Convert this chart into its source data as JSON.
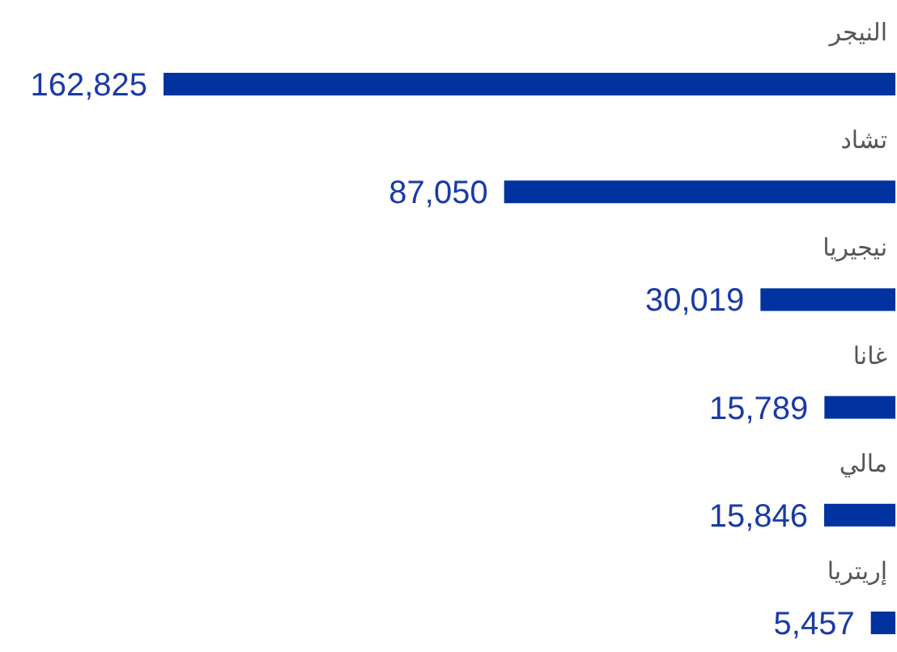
{
  "chart_data": {
    "type": "bar",
    "orientation": "horizontal",
    "categories": [
      "النيجر",
      "تشاد",
      "نيجيريا",
      "غانا",
      "مالي",
      "إريتريا"
    ],
    "values": [
      162825,
      87050,
      30019,
      15789,
      15846,
      5457
    ],
    "value_labels": [
      "162,825",
      "87,050",
      "30,019",
      "15,789",
      "15,846",
      "5,457"
    ],
    "color": "#0033a0"
  }
}
